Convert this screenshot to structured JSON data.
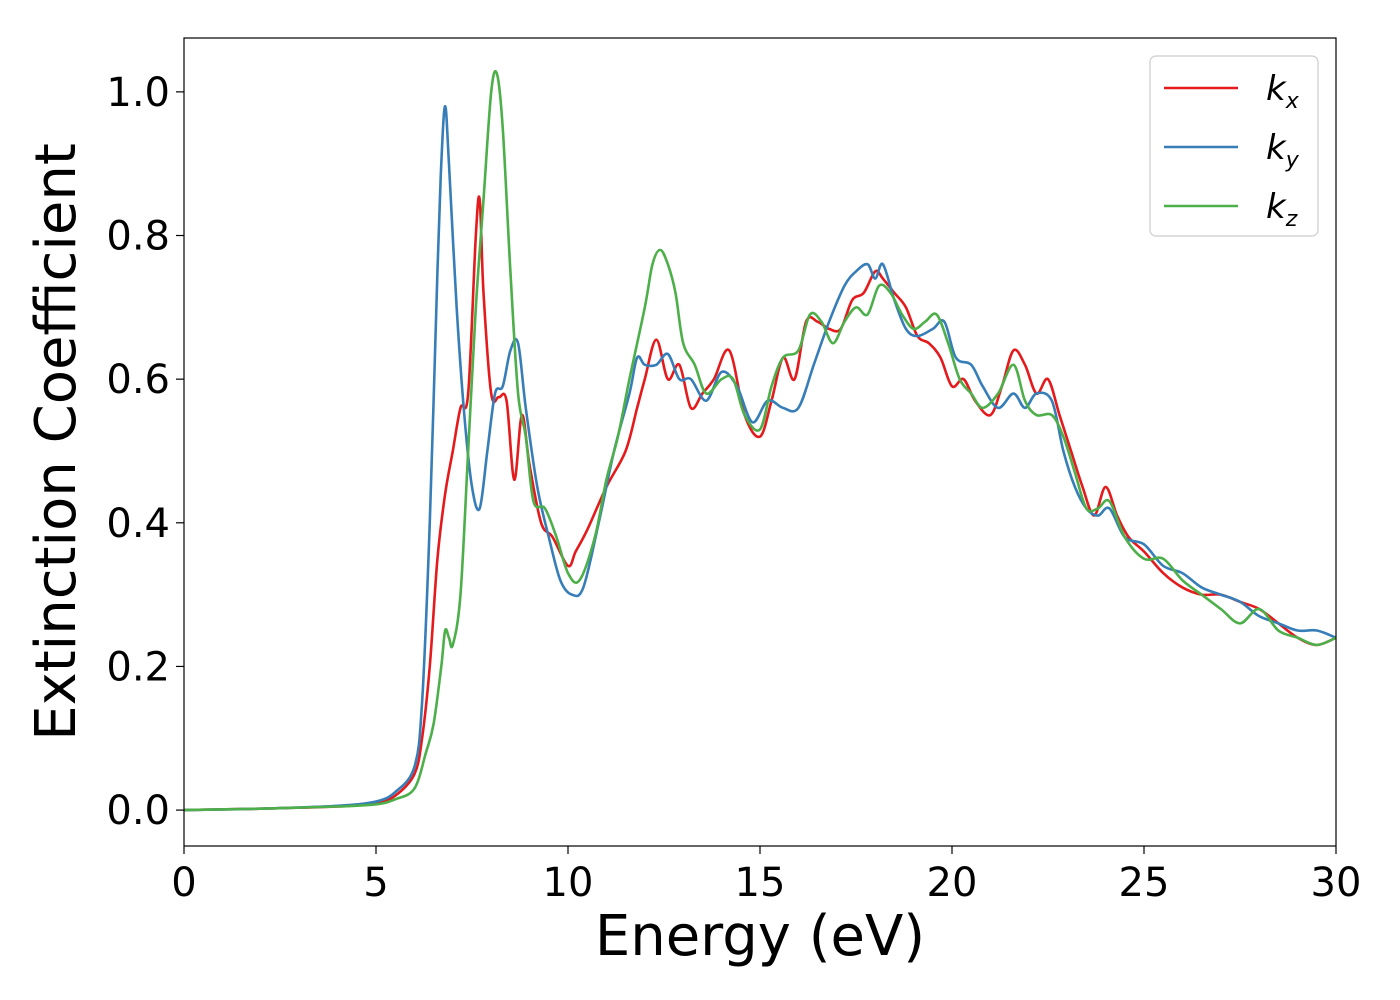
{
  "chart_data": {
    "type": "line",
    "title": "",
    "xlabel": "Energy (eV)",
    "ylabel": "Extinction Coefficient",
    "xlim": [
      0,
      30
    ],
    "ylim": [
      -0.05,
      1.075
    ],
    "xticks": [
      0,
      5,
      10,
      15,
      20,
      25,
      30
    ],
    "xtick_labels": [
      "0",
      "5",
      "10",
      "15",
      "20",
      "25",
      "30"
    ],
    "yticks": [
      0.0,
      0.2,
      0.4,
      0.6,
      0.8,
      1.0
    ],
    "ytick_labels": [
      "0.0",
      "0.2",
      "0.4",
      "0.6",
      "0.8",
      "1.0"
    ],
    "grid": false,
    "legend_position": "top-right",
    "series": [
      {
        "name": "k_x",
        "label_main": "k",
        "label_sub": "x",
        "color": "#e41a1c",
        "x": [
          0,
          2,
          4,
          5,
          5.5,
          6,
          6.2,
          6.4,
          6.6,
          6.8,
          7.0,
          7.2,
          7.4,
          7.6,
          7.7,
          7.8,
          8.0,
          8.2,
          8.4,
          8.6,
          8.8,
          9.0,
          9.3,
          9.6,
          10.0,
          10.2,
          10.5,
          11.0,
          11.5,
          11.8,
          12.0,
          12.3,
          12.6,
          12.9,
          13.2,
          13.5,
          13.8,
          14.2,
          14.6,
          15.0,
          15.3,
          15.6,
          15.9,
          16.2,
          16.5,
          16.8,
          17.1,
          17.4,
          17.7,
          18.0,
          18.2,
          18.5,
          18.8,
          19.1,
          19.4,
          19.7,
          20.0,
          20.3,
          20.6,
          21.0,
          21.3,
          21.6,
          21.9,
          22.2,
          22.5,
          22.8,
          23.1,
          23.4,
          23.7,
          24.0,
          24.3,
          24.6,
          25.0,
          25.5,
          26.0,
          26.5,
          27.0,
          27.5,
          28.0,
          28.5,
          29.0,
          29.5,
          30.0
        ],
        "y": [
          0.0,
          0.002,
          0.005,
          0.01,
          0.02,
          0.05,
          0.1,
          0.2,
          0.35,
          0.44,
          0.5,
          0.56,
          0.58,
          0.8,
          0.85,
          0.72,
          0.58,
          0.575,
          0.57,
          0.46,
          0.55,
          0.48,
          0.4,
          0.38,
          0.34,
          0.36,
          0.39,
          0.45,
          0.5,
          0.56,
          0.6,
          0.655,
          0.6,
          0.62,
          0.56,
          0.58,
          0.6,
          0.64,
          0.55,
          0.52,
          0.57,
          0.63,
          0.6,
          0.68,
          0.68,
          0.67,
          0.67,
          0.71,
          0.72,
          0.75,
          0.74,
          0.72,
          0.7,
          0.66,
          0.65,
          0.63,
          0.59,
          0.6,
          0.57,
          0.55,
          0.59,
          0.64,
          0.62,
          0.58,
          0.6,
          0.55,
          0.5,
          0.45,
          0.41,
          0.45,
          0.41,
          0.38,
          0.36,
          0.33,
          0.31,
          0.3,
          0.3,
          0.29,
          0.28,
          0.26,
          0.24,
          0.23,
          0.24
        ]
      },
      {
        "name": "k_y",
        "label_main": "k",
        "label_sub": "y",
        "color": "#377eb8",
        "x": [
          0,
          2,
          4,
          5,
          5.5,
          6,
          6.2,
          6.4,
          6.6,
          6.7,
          6.8,
          6.9,
          7.1,
          7.3,
          7.5,
          7.7,
          7.9,
          8.1,
          8.3,
          8.5,
          8.7,
          8.9,
          9.2,
          9.5,
          9.8,
          10.1,
          10.4,
          10.8,
          11.2,
          11.6,
          11.8,
          12.0,
          12.3,
          12.6,
          12.9,
          13.2,
          13.6,
          14.0,
          14.4,
          14.8,
          15.2,
          15.6,
          16.0,
          16.4,
          16.8,
          17.2,
          17.5,
          17.8,
          18.0,
          18.2,
          18.5,
          18.8,
          19.1,
          19.5,
          19.8,
          20.1,
          20.5,
          20.8,
          21.2,
          21.6,
          21.9,
          22.2,
          22.6,
          22.9,
          23.2,
          23.5,
          23.8,
          24.1,
          24.5,
          25.0,
          25.5,
          26.0,
          26.5,
          27.0,
          27.5,
          28.0,
          28.5,
          29.0,
          29.5,
          30.0
        ],
        "y": [
          0.0,
          0.002,
          0.006,
          0.012,
          0.025,
          0.06,
          0.15,
          0.4,
          0.75,
          0.9,
          0.98,
          0.9,
          0.7,
          0.55,
          0.45,
          0.42,
          0.5,
          0.58,
          0.59,
          0.64,
          0.65,
          0.56,
          0.45,
          0.38,
          0.32,
          0.3,
          0.31,
          0.4,
          0.5,
          0.58,
          0.63,
          0.62,
          0.62,
          0.635,
          0.6,
          0.6,
          0.57,
          0.61,
          0.59,
          0.54,
          0.57,
          0.56,
          0.56,
          0.62,
          0.68,
          0.73,
          0.75,
          0.76,
          0.74,
          0.76,
          0.71,
          0.67,
          0.66,
          0.67,
          0.68,
          0.63,
          0.62,
          0.59,
          0.56,
          0.58,
          0.56,
          0.58,
          0.57,
          0.5,
          0.45,
          0.42,
          0.41,
          0.42,
          0.38,
          0.37,
          0.34,
          0.33,
          0.31,
          0.3,
          0.29,
          0.27,
          0.26,
          0.25,
          0.25,
          0.24
        ]
      },
      {
        "name": "k_z",
        "label_main": "k",
        "label_sub": "z",
        "color": "#4daf4a",
        "x": [
          0,
          2,
          4,
          5,
          5.5,
          6,
          6.3,
          6.5,
          6.7,
          6.8,
          6.9,
          7.0,
          7.2,
          7.4,
          7.6,
          7.8,
          8.0,
          8.15,
          8.3,
          8.5,
          8.7,
          8.9,
          9.1,
          9.4,
          9.7,
          10.0,
          10.3,
          10.7,
          11.0,
          11.3,
          11.6,
          12.0,
          12.2,
          12.4,
          12.6,
          12.8,
          13.0,
          13.3,
          13.6,
          14.0,
          14.3,
          14.6,
          15.0,
          15.3,
          15.6,
          16.0,
          16.3,
          16.6,
          16.9,
          17.2,
          17.5,
          17.8,
          18.1,
          18.4,
          18.7,
          19.0,
          19.3,
          19.6,
          19.9,
          20.2,
          20.5,
          20.8,
          21.2,
          21.6,
          21.9,
          22.2,
          22.6,
          22.9,
          23.2,
          23.5,
          23.8,
          24.1,
          24.5,
          25.0,
          25.5,
          26.0,
          26.5,
          27.0,
          27.5,
          28.0,
          28.5,
          29.0,
          29.5,
          30.0
        ],
        "y": [
          0.0,
          0.002,
          0.005,
          0.008,
          0.015,
          0.03,
          0.08,
          0.12,
          0.2,
          0.25,
          0.24,
          0.23,
          0.3,
          0.5,
          0.7,
          0.85,
          1.0,
          1.025,
          0.95,
          0.75,
          0.58,
          0.52,
          0.43,
          0.42,
          0.38,
          0.33,
          0.32,
          0.38,
          0.46,
          0.52,
          0.6,
          0.7,
          0.76,
          0.78,
          0.76,
          0.72,
          0.65,
          0.62,
          0.58,
          0.6,
          0.6,
          0.55,
          0.53,
          0.59,
          0.63,
          0.64,
          0.69,
          0.68,
          0.65,
          0.68,
          0.7,
          0.69,
          0.73,
          0.72,
          0.69,
          0.67,
          0.68,
          0.69,
          0.65,
          0.6,
          0.58,
          0.56,
          0.58,
          0.62,
          0.57,
          0.55,
          0.55,
          0.52,
          0.47,
          0.42,
          0.42,
          0.43,
          0.38,
          0.35,
          0.35,
          0.32,
          0.3,
          0.28,
          0.26,
          0.28,
          0.25,
          0.24,
          0.23,
          0.24
        ]
      }
    ]
  }
}
